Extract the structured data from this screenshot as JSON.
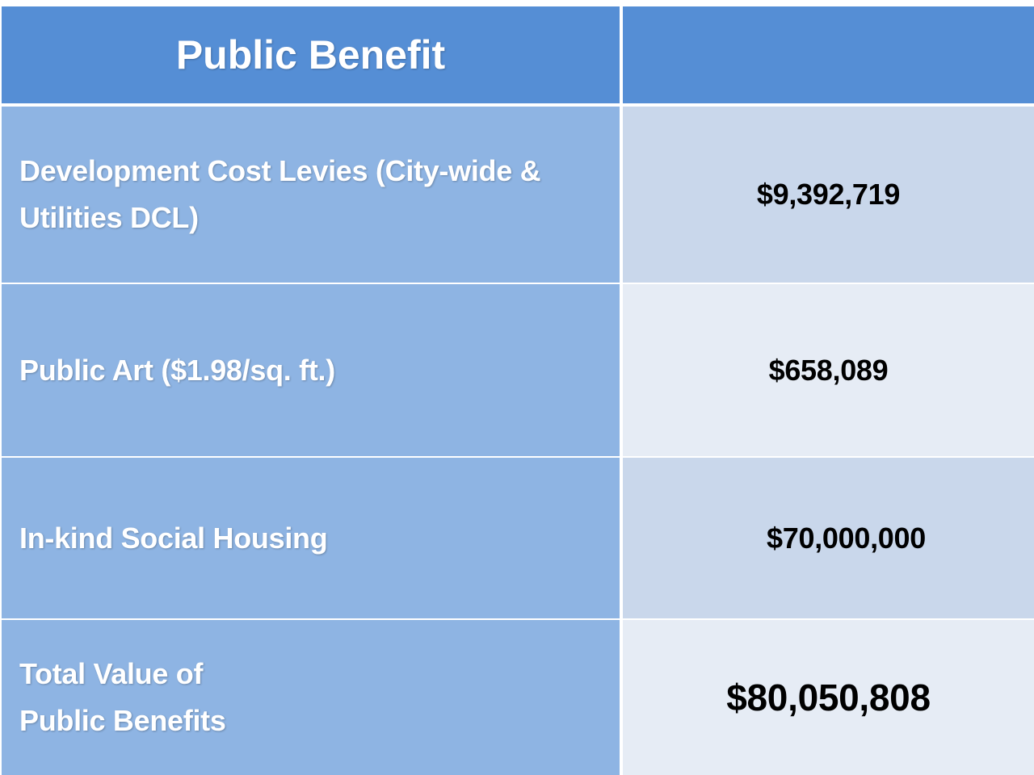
{
  "table": {
    "header": {
      "title": "Public Benefit"
    },
    "rows": [
      {
        "label": "Development Cost Levies (City-wide & Utilities DCL)",
        "value": "$9,392,719"
      },
      {
        "label": "Public Art ($1.98/sq. ft.)",
        "value": "$658,089"
      },
      {
        "label": "In-kind Social Housing",
        "value": "$70,000,000"
      },
      {
        "label": "Total Value of\nPublic Benefits",
        "value": "$80,050,808"
      }
    ]
  }
}
